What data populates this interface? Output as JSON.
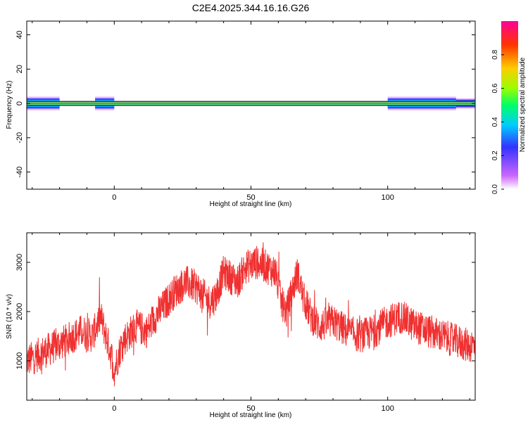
{
  "figure_title": "C2E4.2025.344.16.16.G26",
  "chart_data": [
    {
      "type": "heatmap",
      "title": "C2E4.2025.344.16.16.G26",
      "xlabel": "Height of straight line (km)",
      "ylabel": "Frequency (Hz)",
      "xlim": [
        -32,
        132
      ],
      "ylim": [
        -50,
        48
      ],
      "x_ticks": [
        0,
        50,
        100
      ],
      "y_ticks": [
        -40,
        -20,
        0,
        20,
        40
      ],
      "colorbar": {
        "label": "Normalized spectral amplitude",
        "range": [
          0,
          1
        ],
        "ticks": [
          0.0,
          0.2,
          0.4,
          0.6,
          0.8
        ],
        "colormap": [
          "#ffffff",
          "#cc66ff",
          "#3333ff",
          "#00ccff",
          "#00ff66",
          "#99ff00",
          "#ffcc00",
          "#ff3300",
          "#ff0099"
        ]
      },
      "band": {
        "center_freq": 0,
        "core_halfwidth": 1,
        "wide_regions": [
          {
            "x_start": -32,
            "x_end": -20,
            "halfwidth": 4
          },
          {
            "x_start": -7,
            "x_end": 0,
            "halfwidth": 4
          },
          {
            "x_start": 100,
            "x_end": 125,
            "halfwidth": 4
          },
          {
            "x_start": 125,
            "x_end": 132,
            "halfwidth": 3
          }
        ]
      },
      "grid": false
    },
    {
      "type": "line",
      "xlabel": "Height of straight line (km)",
      "ylabel": "SNR (10 * v/v)",
      "xlim": [
        -32,
        132
      ],
      "ylim": [
        200,
        3600
      ],
      "x_ticks": [
        0,
        50,
        100
      ],
      "y_ticks": [
        1000,
        2000,
        3000
      ],
      "color": "#f03030",
      "series": [
        {
          "x": [
            -32,
            -25,
            -18,
            -12,
            -8,
            -5,
            -3,
            -1,
            0,
            3,
            8,
            12,
            15,
            18,
            22,
            26,
            30,
            33,
            35,
            37,
            40,
            45,
            48,
            52,
            56,
            59,
            61,
            63,
            65,
            67,
            69,
            72,
            75,
            80,
            85,
            90,
            95,
            100,
            105,
            110,
            115,
            120,
            125,
            130,
            132
          ],
          "y": [
            1000,
            1200,
            1400,
            1600,
            1500,
            1900,
            1500,
            1100,
            800,
            1400,
            1700,
            1600,
            1900,
            2100,
            2400,
            2600,
            2500,
            2300,
            2200,
            2300,
            2800,
            2600,
            2900,
            3000,
            2900,
            2800,
            2200,
            2000,
            2400,
            2800,
            2300,
            1900,
            1700,
            1800,
            1600,
            1500,
            1600,
            1800,
            1900,
            1700,
            1600,
            1500,
            1400,
            1300,
            1350
          ]
        }
      ],
      "grid": false
    }
  ]
}
